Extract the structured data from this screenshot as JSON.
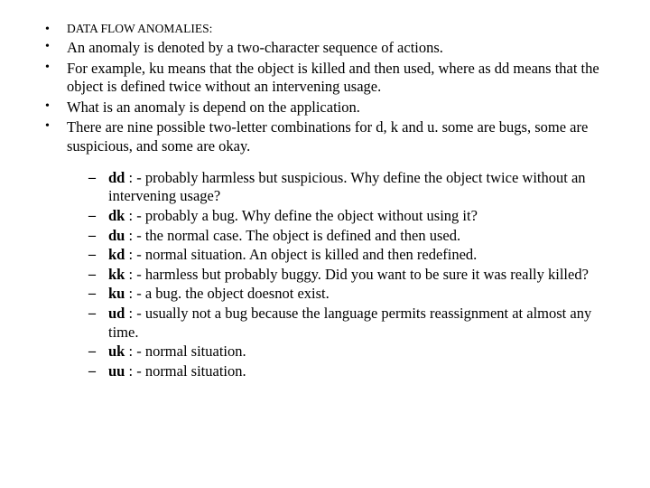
{
  "colors": {
    "background": "#ffffff",
    "text": "#000000"
  },
  "typography": {
    "family": "Times New Roman",
    "body_size_pt": 12,
    "heading_size_pt": 10,
    "line_height": 1.25
  },
  "heading": "DATA FLOW ANOMALIES:",
  "bullets": [
    "An anomaly is denoted by a two-character sequence of actions.",
    "For example, ku means that the object is killed and then used, where as dd means that the object is defined twice without an intervening usage.",
    "What is an anomaly is depend on the application.",
    "There are nine possible two-letter combinations for d, k and u. some are bugs, some are suspicious, and some are okay."
  ],
  "sub_items": [
    {
      "label": "dd",
      "desc": " : - probably harmless but suspicious. Why define the object twice without an intervening usage?"
    },
    {
      "label": "dk",
      "desc": " : - probably a bug. Why define the object without using it?"
    },
    {
      "label": "du",
      "desc": " : - the normal case. The object is defined and then used."
    },
    {
      "label": "kd",
      "desc": " : - normal situation. An object is killed and then redefined."
    },
    {
      "label": "kk",
      "desc": " : - harmless but probably buggy. Did you want to be sure it was really killed?"
    },
    {
      "label": "ku",
      "desc": " : - a bug. the object doesnot exist."
    },
    {
      "label": "ud",
      "desc": " : - usually not a bug because the language permits reassignment at almost any time."
    },
    {
      "label": "uk",
      "desc": " : - normal situation."
    },
    {
      "label": "uu",
      "desc": " : - normal situation."
    }
  ]
}
